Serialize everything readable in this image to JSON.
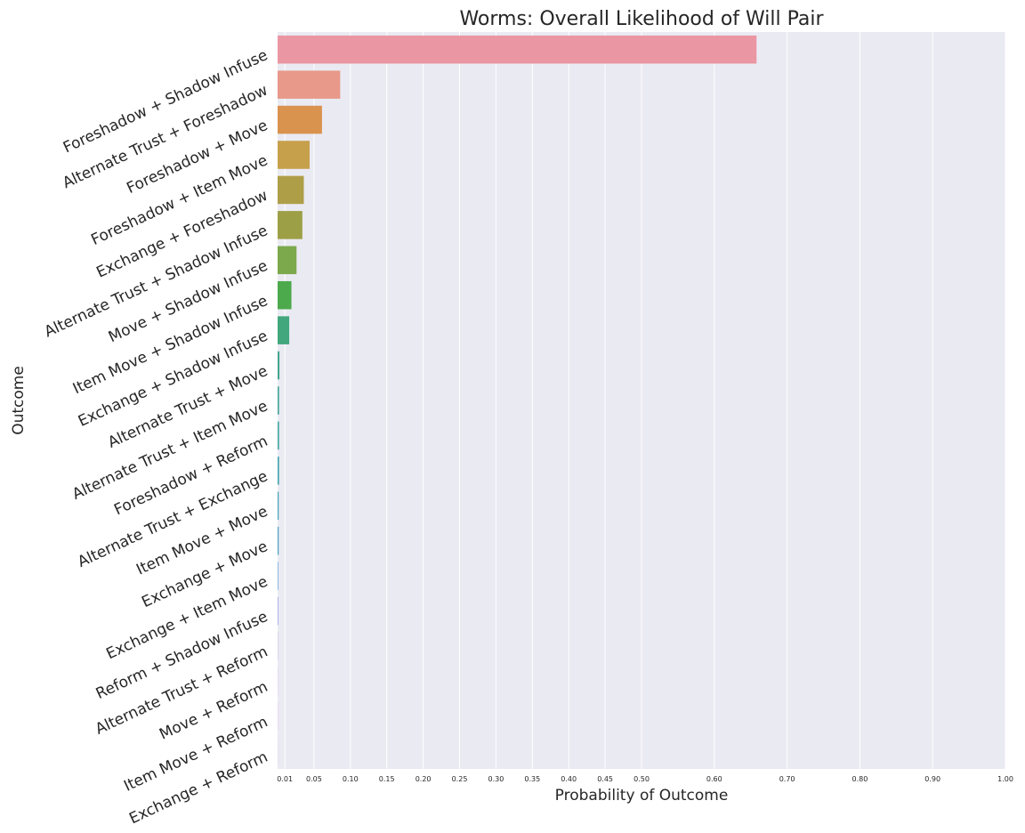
{
  "chart_data": {
    "type": "bar",
    "orientation": "horizontal",
    "title": "Worms: Overall Likelihood of Will Pair",
    "xlabel": "Probability of Outcome",
    "ylabel": "Outcome",
    "xlim": [
      0,
      1.0
    ],
    "xticks": [
      0.01,
      0.05,
      0.1,
      0.15,
      0.2,
      0.25,
      0.3,
      0.35,
      0.4,
      0.45,
      0.5,
      0.6,
      0.7,
      0.8,
      0.9,
      1.0
    ],
    "xtick_labels": [
      "0.01",
      "0.05",
      "0.10",
      "0.15",
      "0.20",
      "0.25",
      "0.30",
      "0.35",
      "0.40",
      "0.45",
      "0.50",
      "0.60",
      "0.70",
      "0.80",
      "0.90",
      "1.00"
    ],
    "grid": true,
    "background": "#eaeaf2",
    "categories": [
      "Foreshadow + Shadow Infuse",
      "Alternate Trust + Foreshadow",
      "Foreshadow + Move",
      "Foreshadow + Item Move",
      "Exchange + Foreshadow",
      "Alternate Trust + Shadow Infuse",
      "Move + Shadow Infuse",
      "Item Move + Shadow Infuse",
      "Exchange + Shadow Infuse",
      "Alternate Trust + Move",
      "Alternate Trust + Item Move",
      "Foreshadow + Reform",
      "Alternate Trust + Exchange",
      "Item Move + Move",
      "Exchange + Move",
      "Exchange + Item Move",
      "Reform + Shadow Infuse",
      "Alternate Trust + Reform",
      "Move + Reform",
      "Item Move + Reform",
      "Exchange + Reform"
    ],
    "values": [
      0.658,
      0.086,
      0.061,
      0.044,
      0.036,
      0.034,
      0.026,
      0.019,
      0.016,
      0.0025,
      0.002,
      0.002,
      0.002,
      0.0015,
      0.0015,
      0.0008,
      0.0008,
      0.0003,
      0.0002,
      0.0002,
      0.0001
    ],
    "colors": [
      "#ea96a3",
      "#e8998a",
      "#d9934f",
      "#c7a04b",
      "#ae9e48",
      "#9d9f47",
      "#7ba94c",
      "#4daa4c",
      "#42a77d",
      "#43a68f",
      "#44a59b",
      "#45a6a4",
      "#47a4ae",
      "#49a3b9",
      "#4ea2c5",
      "#5b9fd8",
      "#8f9aea",
      "#b095ea",
      "#d28ae6",
      "#e585d6",
      "#e88bbd"
    ]
  }
}
